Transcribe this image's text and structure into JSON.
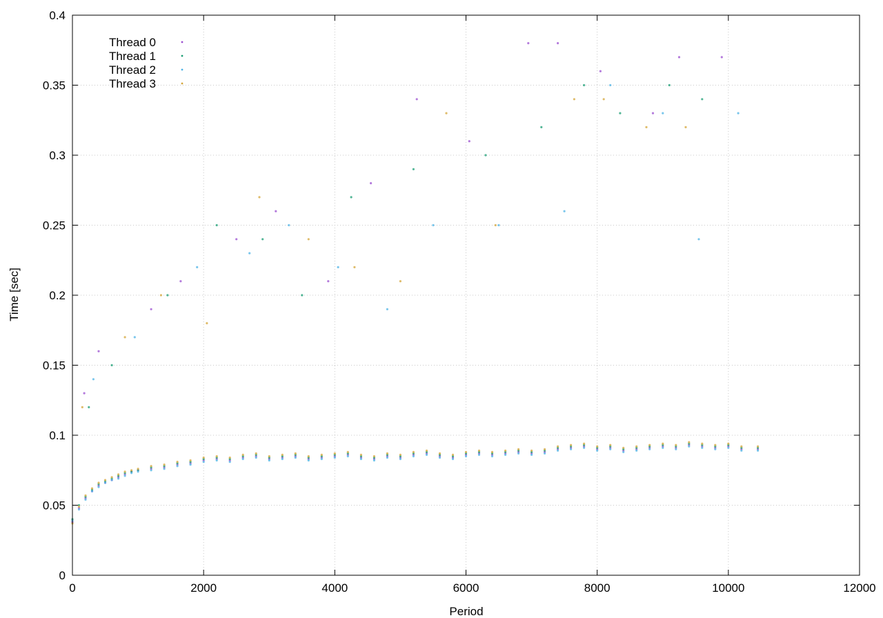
{
  "chart_data": {
    "type": "scatter",
    "title": "",
    "xlabel": "Period",
    "ylabel": "Time [sec]",
    "xlim": [
      0,
      12000
    ],
    "ylim": [
      0,
      0.4
    ],
    "xticks": [
      {
        "value": 0,
        "label": "0"
      },
      {
        "value": 2000,
        "label": "2000"
      },
      {
        "value": 4000,
        "label": "4000"
      },
      {
        "value": 6000,
        "label": "6000"
      },
      {
        "value": 8000,
        "label": "8000"
      },
      {
        "value": 10000,
        "label": "10000"
      },
      {
        "value": 12000,
        "label": "12000"
      }
    ],
    "yticks": [
      {
        "value": 0,
        "label": "0"
      },
      {
        "value": 0.05,
        "label": "0.05"
      },
      {
        "value": 0.1,
        "label": "0.1"
      },
      {
        "value": 0.15,
        "label": "0.15"
      },
      {
        "value": 0.2,
        "label": "0.2"
      },
      {
        "value": 0.25,
        "label": "0.25"
      },
      {
        "value": 0.3,
        "label": "0.3"
      },
      {
        "value": 0.35,
        "label": "0.35"
      },
      {
        "value": 0.4,
        "label": "0.4"
      }
    ],
    "grid": true,
    "legend_position": "top-left",
    "series": [
      {
        "name": "Thread 0",
        "color": "#9B4FD0",
        "marker": "dot",
        "points": [
          [
            0,
            0.038
          ],
          [
            100,
            0.048
          ],
          [
            200,
            0.055
          ],
          [
            300,
            0.06
          ],
          [
            400,
            0.064
          ],
          [
            500,
            0.066
          ],
          [
            600,
            0.068
          ],
          [
            700,
            0.07
          ],
          [
            800,
            0.072
          ],
          [
            900,
            0.074
          ],
          [
            1000,
            0.075
          ],
          [
            1200,
            0.076
          ],
          [
            1400,
            0.077
          ],
          [
            1600,
            0.079
          ],
          [
            1800,
            0.08
          ],
          [
            2000,
            0.082
          ],
          [
            2200,
            0.083
          ],
          [
            2400,
            0.082
          ],
          [
            2600,
            0.084
          ],
          [
            2800,
            0.085
          ],
          [
            3000,
            0.083
          ],
          [
            3200,
            0.084
          ],
          [
            3400,
            0.085
          ],
          [
            3600,
            0.083
          ],
          [
            3800,
            0.084
          ],
          [
            4000,
            0.085
          ],
          [
            4200,
            0.086
          ],
          [
            4400,
            0.084
          ],
          [
            4600,
            0.083
          ],
          [
            4800,
            0.085
          ],
          [
            5000,
            0.084
          ],
          [
            5200,
            0.086
          ],
          [
            5400,
            0.087
          ],
          [
            5600,
            0.085
          ],
          [
            5800,
            0.084
          ],
          [
            6000,
            0.086
          ],
          [
            6200,
            0.087
          ],
          [
            6400,
            0.086
          ],
          [
            6600,
            0.087
          ],
          [
            6800,
            0.088
          ],
          [
            7000,
            0.087
          ],
          [
            7200,
            0.088
          ],
          [
            7400,
            0.09
          ],
          [
            7600,
            0.091
          ],
          [
            7800,
            0.092
          ],
          [
            8000,
            0.09
          ],
          [
            8200,
            0.091
          ],
          [
            8400,
            0.089
          ],
          [
            8600,
            0.09
          ],
          [
            8800,
            0.091
          ],
          [
            9000,
            0.092
          ],
          [
            9200,
            0.091
          ],
          [
            9400,
            0.093
          ],
          [
            9600,
            0.092
          ],
          [
            9800,
            0.091
          ],
          [
            10000,
            0.092
          ],
          [
            10200,
            0.09
          ],
          [
            10450,
            0.09
          ],
          [
            180,
            0.13
          ],
          [
            400,
            0.16
          ],
          [
            1200,
            0.19
          ],
          [
            1650,
            0.21
          ],
          [
            2500,
            0.24
          ],
          [
            3100,
            0.26
          ],
          [
            3900,
            0.21
          ],
          [
            4550,
            0.28
          ],
          [
            5250,
            0.34
          ],
          [
            6050,
            0.31
          ],
          [
            6950,
            0.38
          ],
          [
            7400,
            0.38
          ],
          [
            8050,
            0.36
          ],
          [
            8850,
            0.33
          ],
          [
            9250,
            0.37
          ],
          [
            9900,
            0.37
          ]
        ]
      },
      {
        "name": "Thread 1",
        "color": "#1A9E73",
        "marker": "dot",
        "points": [
          [
            0,
            0.04
          ],
          [
            100,
            0.05
          ],
          [
            200,
            0.056
          ],
          [
            300,
            0.061
          ],
          [
            400,
            0.065
          ],
          [
            500,
            0.067
          ],
          [
            600,
            0.069
          ],
          [
            700,
            0.071
          ],
          [
            800,
            0.073
          ],
          [
            900,
            0.074
          ],
          [
            1000,
            0.075
          ],
          [
            1200,
            0.077
          ],
          [
            1400,
            0.078
          ],
          [
            1600,
            0.08
          ],
          [
            1800,
            0.081
          ],
          [
            2000,
            0.083
          ],
          [
            2200,
            0.084
          ],
          [
            2400,
            0.083
          ],
          [
            2600,
            0.085
          ],
          [
            2800,
            0.086
          ],
          [
            3000,
            0.084
          ],
          [
            3200,
            0.085
          ],
          [
            3400,
            0.086
          ],
          [
            3600,
            0.084
          ],
          [
            3800,
            0.085
          ],
          [
            4000,
            0.086
          ],
          [
            4200,
            0.087
          ],
          [
            4400,
            0.085
          ],
          [
            4600,
            0.084
          ],
          [
            4800,
            0.086
          ],
          [
            5000,
            0.085
          ],
          [
            5200,
            0.087
          ],
          [
            5400,
            0.088
          ],
          [
            5600,
            0.086
          ],
          [
            5800,
            0.085
          ],
          [
            6000,
            0.087
          ],
          [
            6200,
            0.088
          ],
          [
            6400,
            0.087
          ],
          [
            6600,
            0.088
          ],
          [
            6800,
            0.089
          ],
          [
            7000,
            0.088
          ],
          [
            7200,
            0.089
          ],
          [
            7400,
            0.091
          ],
          [
            7600,
            0.092
          ],
          [
            7800,
            0.093
          ],
          [
            8000,
            0.091
          ],
          [
            8200,
            0.092
          ],
          [
            8400,
            0.09
          ],
          [
            8600,
            0.091
          ],
          [
            8800,
            0.092
          ],
          [
            9000,
            0.093
          ],
          [
            9200,
            0.092
          ],
          [
            9400,
            0.094
          ],
          [
            9600,
            0.093
          ],
          [
            9800,
            0.092
          ],
          [
            10000,
            0.093
          ],
          [
            10200,
            0.091
          ],
          [
            10450,
            0.091
          ],
          [
            250,
            0.12
          ],
          [
            600,
            0.15
          ],
          [
            1450,
            0.2
          ],
          [
            2200,
            0.25
          ],
          [
            2900,
            0.24
          ],
          [
            3500,
            0.2
          ],
          [
            4250,
            0.27
          ],
          [
            5200,
            0.29
          ],
          [
            6300,
            0.3
          ],
          [
            7150,
            0.32
          ],
          [
            7800,
            0.35
          ],
          [
            8350,
            0.33
          ],
          [
            9100,
            0.35
          ],
          [
            9600,
            0.34
          ]
        ]
      },
      {
        "name": "Thread 2",
        "color": "#4DB3E6",
        "marker": "dot",
        "points": [
          [
            0,
            0.039
          ],
          [
            100,
            0.047
          ],
          [
            200,
            0.054
          ],
          [
            300,
            0.06
          ],
          [
            400,
            0.063
          ],
          [
            500,
            0.066
          ],
          [
            600,
            0.068
          ],
          [
            700,
            0.069
          ],
          [
            800,
            0.071
          ],
          [
            900,
            0.073
          ],
          [
            1000,
            0.074
          ],
          [
            1200,
            0.075
          ],
          [
            1400,
            0.076
          ],
          [
            1600,
            0.078
          ],
          [
            1800,
            0.079
          ],
          [
            2000,
            0.081
          ],
          [
            2200,
            0.082
          ],
          [
            2400,
            0.081
          ],
          [
            2600,
            0.083
          ],
          [
            2800,
            0.084
          ],
          [
            3000,
            0.082
          ],
          [
            3200,
            0.083
          ],
          [
            3400,
            0.084
          ],
          [
            3600,
            0.082
          ],
          [
            3800,
            0.083
          ],
          [
            4000,
            0.084
          ],
          [
            4200,
            0.085
          ],
          [
            4400,
            0.083
          ],
          [
            4600,
            0.082
          ],
          [
            4800,
            0.084
          ],
          [
            5000,
            0.083
          ],
          [
            5200,
            0.085
          ],
          [
            5400,
            0.086
          ],
          [
            5600,
            0.084
          ],
          [
            5800,
            0.083
          ],
          [
            6000,
            0.085
          ],
          [
            6200,
            0.086
          ],
          [
            6400,
            0.085
          ],
          [
            6600,
            0.086
          ],
          [
            6800,
            0.087
          ],
          [
            7000,
            0.086
          ],
          [
            7200,
            0.087
          ],
          [
            7400,
            0.089
          ],
          [
            7600,
            0.09
          ],
          [
            7800,
            0.091
          ],
          [
            8000,
            0.089
          ],
          [
            8200,
            0.09
          ],
          [
            8400,
            0.088
          ],
          [
            8600,
            0.089
          ],
          [
            8800,
            0.09
          ],
          [
            9000,
            0.091
          ],
          [
            9200,
            0.09
          ],
          [
            9400,
            0.092
          ],
          [
            9600,
            0.091
          ],
          [
            9800,
            0.09
          ],
          [
            10000,
            0.091
          ],
          [
            10200,
            0.089
          ],
          [
            10450,
            0.089
          ],
          [
            320,
            0.14
          ],
          [
            950,
            0.17
          ],
          [
            1900,
            0.22
          ],
          [
            2700,
            0.23
          ],
          [
            3300,
            0.25
          ],
          [
            4050,
            0.22
          ],
          [
            4800,
            0.19
          ],
          [
            5500,
            0.25
          ],
          [
            6500,
            0.25
          ],
          [
            7500,
            0.26
          ],
          [
            8200,
            0.35
          ],
          [
            9000,
            0.33
          ],
          [
            9550,
            0.24
          ],
          [
            10150,
            0.33
          ]
        ]
      },
      {
        "name": "Thread 3",
        "color": "#D4A53A",
        "marker": "dot",
        "points": [
          [
            0,
            0.037
          ],
          [
            100,
            0.049
          ],
          [
            200,
            0.057
          ],
          [
            300,
            0.062
          ],
          [
            400,
            0.066
          ],
          [
            500,
            0.068
          ],
          [
            600,
            0.07
          ],
          [
            700,
            0.072
          ],
          [
            800,
            0.074
          ],
          [
            900,
            0.075
          ],
          [
            1000,
            0.076
          ],
          [
            1200,
            0.078
          ],
          [
            1400,
            0.079
          ],
          [
            1600,
            0.081
          ],
          [
            1800,
            0.082
          ],
          [
            2000,
            0.084
          ],
          [
            2200,
            0.085
          ],
          [
            2400,
            0.084
          ],
          [
            2600,
            0.086
          ],
          [
            2800,
            0.087
          ],
          [
            3000,
            0.085
          ],
          [
            3200,
            0.086
          ],
          [
            3400,
            0.087
          ],
          [
            3600,
            0.085
          ],
          [
            3800,
            0.086
          ],
          [
            4000,
            0.087
          ],
          [
            4200,
            0.088
          ],
          [
            4400,
            0.086
          ],
          [
            4600,
            0.085
          ],
          [
            4800,
            0.087
          ],
          [
            5000,
            0.086
          ],
          [
            5200,
            0.088
          ],
          [
            5400,
            0.089
          ],
          [
            5600,
            0.087
          ],
          [
            5800,
            0.086
          ],
          [
            6000,
            0.088
          ],
          [
            6200,
            0.089
          ],
          [
            6400,
            0.088
          ],
          [
            6600,
            0.089
          ],
          [
            6800,
            0.09
          ],
          [
            7000,
            0.089
          ],
          [
            7200,
            0.09
          ],
          [
            7400,
            0.092
          ],
          [
            7600,
            0.093
          ],
          [
            7800,
            0.094
          ],
          [
            8000,
            0.092
          ],
          [
            8200,
            0.093
          ],
          [
            8400,
            0.091
          ],
          [
            8600,
            0.092
          ],
          [
            8800,
            0.093
          ],
          [
            9000,
            0.094
          ],
          [
            9200,
            0.093
          ],
          [
            9400,
            0.095
          ],
          [
            9600,
            0.094
          ],
          [
            9800,
            0.093
          ],
          [
            10000,
            0.094
          ],
          [
            10200,
            0.092
          ],
          [
            10450,
            0.092
          ],
          [
            150,
            0.12
          ],
          [
            800,
            0.17
          ],
          [
            1350,
            0.2
          ],
          [
            2050,
            0.18
          ],
          [
            2850,
            0.27
          ],
          [
            3600,
            0.24
          ],
          [
            4300,
            0.22
          ],
          [
            5000,
            0.21
          ],
          [
            5700,
            0.33
          ],
          [
            6450,
            0.25
          ],
          [
            7650,
            0.34
          ],
          [
            8100,
            0.34
          ],
          [
            8750,
            0.32
          ],
          [
            9350,
            0.32
          ]
        ]
      }
    ]
  }
}
